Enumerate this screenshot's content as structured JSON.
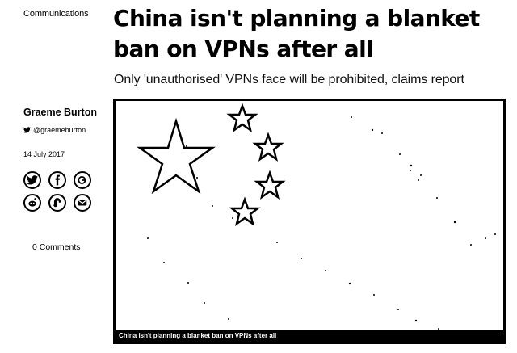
{
  "article": {
    "category": "Communications",
    "title": "China isn't planning a blanket ban on VPNs after all",
    "subtitle": "Only 'unauthorised' VPNs face will be prohibited, claims report",
    "author": "Graeme Burton",
    "twitter_handle": "@graemeburton",
    "date": "14 July 2017",
    "comments": "0 Comments",
    "image_caption": "China isn't planning a blanket ban on VPNs after all"
  },
  "share_buttons": [
    {
      "icon": "twitter-icon"
    },
    {
      "icon": "facebook-icon"
    },
    {
      "icon": "google-plus-icon"
    },
    {
      "icon": "reddit-icon"
    },
    {
      "icon": "stumbleupon-icon"
    },
    {
      "icon": "email-icon"
    }
  ],
  "colors": {
    "background": "#ffffff",
    "text": "#000000"
  }
}
